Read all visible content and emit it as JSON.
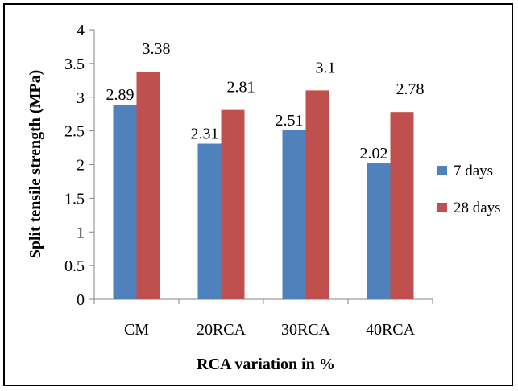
{
  "chart_data": {
    "type": "bar",
    "categories": [
      "CM",
      "20RCA",
      "30RCA",
      "40RCA"
    ],
    "series": [
      {
        "name": "7 days",
        "values": [
          2.89,
          2.31,
          2.51,
          2.02
        ],
        "labels": [
          "2.89",
          "2.31",
          "2.51",
          "2.02"
        ],
        "color": "#4f81bd"
      },
      {
        "name": "28 days",
        "values": [
          3.38,
          2.81,
          3.1,
          2.78
        ],
        "labels": [
          "3.38",
          "2.81",
          "3.1",
          "2.78"
        ],
        "color": "#c0504d"
      }
    ],
    "title": "",
    "xlabel": "RCA variation in %",
    "ylabel": "Split tensile strength (MPa)",
    "ylim": [
      0,
      4
    ],
    "yticks": [
      "0",
      "0.5",
      "1",
      "1.5",
      "2",
      "2.5",
      "3",
      "3.5",
      "4"
    ],
    "grid": false,
    "legend_position": "right"
  }
}
